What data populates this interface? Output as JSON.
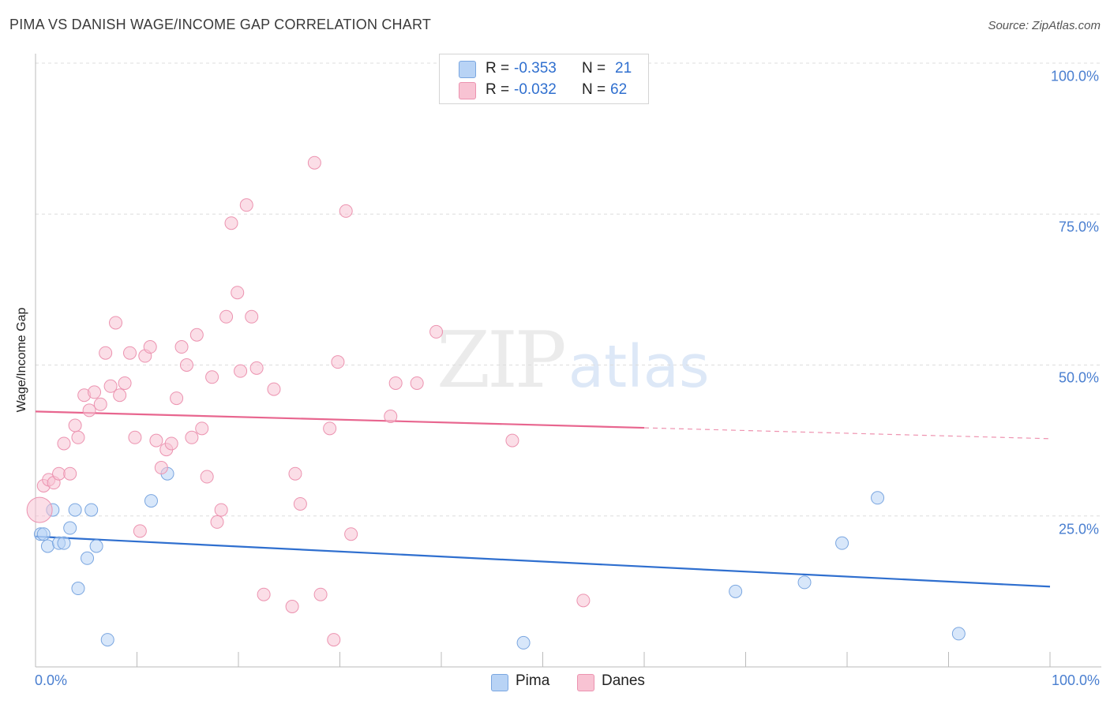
{
  "title": "PIMA VS DANISH WAGE/INCOME GAP CORRELATION CHART",
  "source": "Source: ZipAtlas.com",
  "watermark": {
    "zip": "ZIP",
    "atlas": "atlas"
  },
  "legend": {
    "rows": [
      {
        "r_label": "R =",
        "r_value": "-0.353",
        "n_label": "N =",
        "n_value": "21",
        "color": "#b8d3f5",
        "border": "#7aa6e0"
      },
      {
        "r_label": "R =",
        "r_value": "-0.032",
        "n_label": "N =",
        "n_value": "62",
        "color": "#f8c3d3",
        "border": "#ec93b0"
      }
    ]
  },
  "bottom_legend": [
    {
      "label": "Pima",
      "color": "#b8d3f5",
      "border": "#7aa6e0"
    },
    {
      "label": "Danes",
      "color": "#f8c3d3",
      "border": "#ec93b0"
    }
  ],
  "axes": {
    "ylabel": "Wage/Income Gap",
    "yticks": [
      "100.0%",
      "75.0%",
      "50.0%",
      "25.0%"
    ],
    "xtick_left": "0.0%",
    "xtick_right": "100.0%"
  },
  "chart_data": {
    "type": "scatter",
    "xlim": [
      0,
      100
    ],
    "ylim": [
      0,
      100
    ],
    "grid": true,
    "legend_position": "top-center",
    "series": [
      {
        "name": "Pima",
        "color": "#7aa6e0",
        "fill": "#b8d3f5",
        "trend": {
          "x0": 0,
          "y0": 21.6,
          "x1": 100,
          "y1": 13.3,
          "color": "#2f6fcf",
          "dashed_from": null
        },
        "points": [
          [
            0.5,
            22
          ],
          [
            0.8,
            22
          ],
          [
            1.2,
            20
          ],
          [
            1.7,
            26
          ],
          [
            2.3,
            20.5
          ],
          [
            2.8,
            20.5
          ],
          [
            3.4,
            23
          ],
          [
            3.9,
            26
          ],
          [
            4.2,
            13
          ],
          [
            5.1,
            18
          ],
          [
            5.5,
            26
          ],
          [
            6.0,
            20
          ],
          [
            7.1,
            4.5
          ],
          [
            11.4,
            27.5
          ],
          [
            13.0,
            32
          ],
          [
            48.1,
            4
          ],
          [
            69.0,
            12.5
          ],
          [
            75.8,
            14
          ],
          [
            79.5,
            20.5
          ],
          [
            83.0,
            28
          ],
          [
            91.0,
            5.5
          ]
        ]
      },
      {
        "name": "Danes",
        "color": "#ec93b0",
        "fill": "#f8c3d3",
        "trend": {
          "x0": 0,
          "y0": 42.3,
          "x1": 100,
          "y1": 37.8,
          "color": "#e8668f",
          "dashed_from": 60
        },
        "points": [
          [
            0.4,
            26
          ],
          [
            0.8,
            30
          ],
          [
            1.3,
            31
          ],
          [
            1.8,
            30.5
          ],
          [
            2.3,
            32
          ],
          [
            2.8,
            37
          ],
          [
            3.4,
            32
          ],
          [
            3.9,
            40
          ],
          [
            4.2,
            38
          ],
          [
            4.8,
            45
          ],
          [
            5.3,
            42.5
          ],
          [
            5.8,
            45.5
          ],
          [
            6.4,
            43.5
          ],
          [
            6.9,
            52
          ],
          [
            7.4,
            46.5
          ],
          [
            7.9,
            57
          ],
          [
            8.3,
            45
          ],
          [
            8.8,
            47
          ],
          [
            9.3,
            52
          ],
          [
            9.8,
            38
          ],
          [
            10.3,
            22.5
          ],
          [
            10.8,
            51.5
          ],
          [
            11.3,
            53
          ],
          [
            11.9,
            37.5
          ],
          [
            12.4,
            33
          ],
          [
            12.9,
            36
          ],
          [
            13.4,
            37
          ],
          [
            13.9,
            44.5
          ],
          [
            14.4,
            53
          ],
          [
            14.9,
            50
          ],
          [
            15.4,
            38
          ],
          [
            15.9,
            55
          ],
          [
            16.4,
            39.5
          ],
          [
            16.9,
            31.5
          ],
          [
            17.4,
            48
          ],
          [
            17.9,
            24
          ],
          [
            18.3,
            26
          ],
          [
            18.8,
            58
          ],
          [
            19.3,
            73.5
          ],
          [
            19.9,
            62
          ],
          [
            20.2,
            49
          ],
          [
            20.8,
            76.5
          ],
          [
            21.3,
            58
          ],
          [
            21.8,
            49.5
          ],
          [
            22.5,
            12
          ],
          [
            23.5,
            46
          ],
          [
            25.3,
            10
          ],
          [
            25.6,
            32
          ],
          [
            26.1,
            27
          ],
          [
            27.5,
            83.5
          ],
          [
            28.1,
            12
          ],
          [
            29.0,
            39.5
          ],
          [
            29.4,
            4.5
          ],
          [
            29.8,
            50.5
          ],
          [
            30.6,
            75.5
          ],
          [
            31.1,
            22
          ],
          [
            35.0,
            41.5
          ],
          [
            35.5,
            47
          ],
          [
            37.6,
            47
          ],
          [
            39.5,
            55.5
          ],
          [
            47.0,
            37.5
          ],
          [
            54.0,
            11
          ]
        ]
      }
    ]
  }
}
